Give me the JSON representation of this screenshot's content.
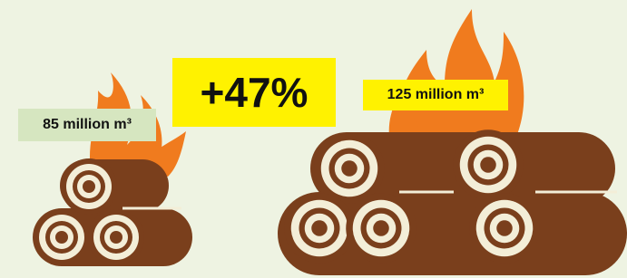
{
  "left_label": "85 million m³",
  "change_label": "+47%",
  "right_label": "125 million m³"
}
